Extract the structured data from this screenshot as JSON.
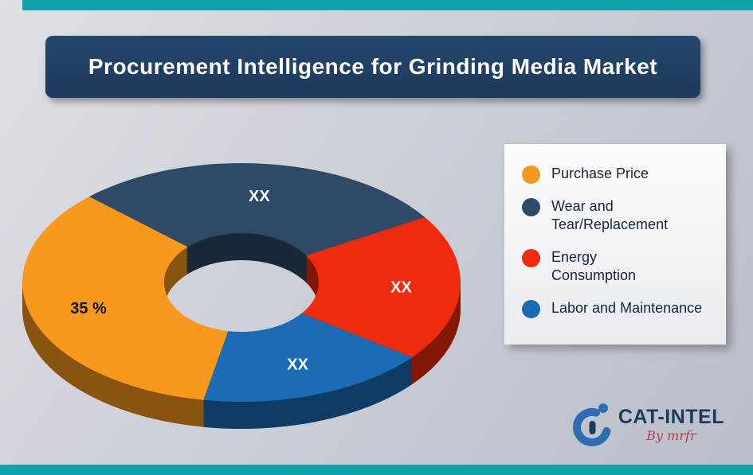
{
  "header": {
    "title": "Procurement Intelligence for Grinding Media Market"
  },
  "chart_data": {
    "type": "pie",
    "subtype": "3d-donut",
    "title": "Procurement Intelligence for Grinding Media Market",
    "legend_position": "right",
    "start_angle_deg": -44,
    "segments": [
      {
        "label": "Wear and Tear/Replacement",
        "value": 28,
        "display_label": "XX",
        "color": "#2E4A66",
        "label_color": "#FFFFFF"
      },
      {
        "label": "Energy Consumption",
        "value": 20,
        "display_label": "XX",
        "color": "#EE2B0C",
        "label_color": "#FFFFFF"
      },
      {
        "label": "Labor and Maintenance",
        "value": 17,
        "display_label": "XX",
        "color": "#1B6CB5",
        "label_color": "#FFFFFF"
      },
      {
        "label": "Purchase Price",
        "value": 35,
        "display_label": "35 %",
        "color": "#F8991D",
        "label_color": "#111111"
      }
    ]
  },
  "legend": {
    "items": [
      {
        "label": "Purchase Price",
        "color": "#F8991D"
      },
      {
        "label": "Wear and\nTear/Replacement",
        "color": "#2E4A66"
      },
      {
        "label": "Energy\nConsumption",
        "color": "#EE2B0C"
      },
      {
        "label": "Labor and Maintenance",
        "color": "#1B6CB5"
      }
    ]
  },
  "logo": {
    "brand": "CAT-INTEL",
    "byline": "By mrfr"
  },
  "colors": {
    "banner": "#1F3C60",
    "edge_bar": "#12A2AB",
    "background": "#C6CBD3",
    "legend_background": "#F2F4F6"
  }
}
